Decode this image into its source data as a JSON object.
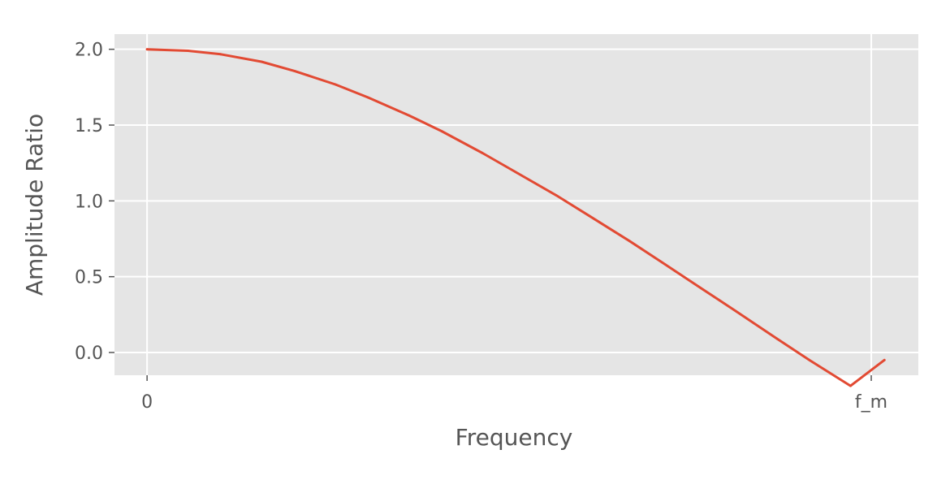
{
  "chart_data": {
    "type": "line",
    "title": "",
    "xlabel": "Frequency",
    "ylabel": "Amplitude Ratio",
    "xlim": [
      -0.045,
      1.065
    ],
    "ylim": [
      -0.15,
      2.1
    ],
    "x_ticks": [
      {
        "value": 0,
        "label": "0"
      },
      {
        "value": 1,
        "label": "f_m"
      }
    ],
    "y_ticks": [
      {
        "value": 0.0,
        "label": "0.0"
      },
      {
        "value": 0.5,
        "label": "0.5"
      },
      {
        "value": 1.0,
        "label": "1.0"
      },
      {
        "value": 1.5,
        "label": "1.5"
      },
      {
        "value": 2.0,
        "label": "2.0"
      }
    ],
    "grid": true,
    "legend": "none",
    "series": [
      {
        "color": "#E24A33",
        "x": [
          0,
          0.0565,
          0.1018,
          0.1581,
          0.2036,
          0.2601,
          0.3051,
          0.3616,
          0.4067,
          0.4632,
          0.5083,
          0.5648,
          0.6098,
          0.6663,
          0.7113,
          0.7678,
          0.8133,
          0.8698,
          0.9149,
          0.9714,
          1.0181
        ],
        "y": [
          2.0,
          1.99,
          1.967,
          1.918,
          1.857,
          1.768,
          1.682,
          1.564,
          1.46,
          1.315,
          1.192,
          1.037,
          0.904,
          0.735,
          0.594,
          0.415,
          0.272,
          0.091,
          -0.051,
          -0.22,
          -0.05
        ]
      }
    ],
    "colors": {
      "plot_background": "#E5E5E5",
      "grid": "#FFFFFF",
      "line": "#E24A33"
    }
  }
}
